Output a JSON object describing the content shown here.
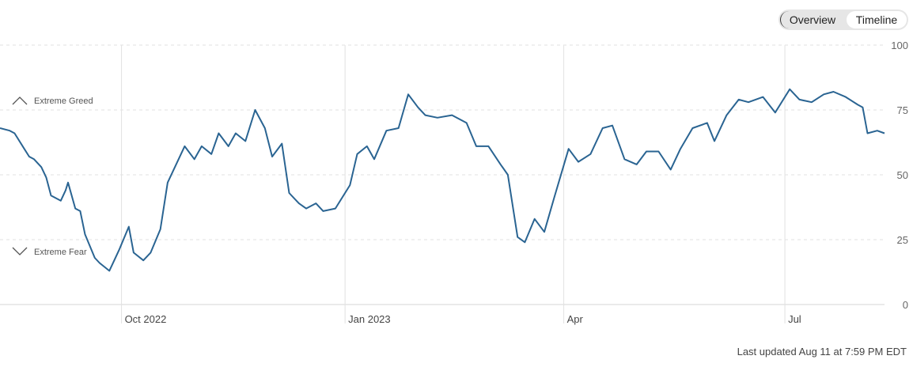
{
  "toggle": {
    "overview_label": "Overview",
    "timeline_label": "Timeline"
  },
  "zones": {
    "greed_label": "Extreme Greed",
    "fear_label": "Extreme Fear"
  },
  "footer": {
    "last_updated": "Last updated Aug 11 at 7:59 PM EDT"
  },
  "colors": {
    "line": "#2a6492",
    "grid": "#e2e2e2",
    "text": "#444444"
  },
  "chart_data": {
    "type": "line",
    "ylim": [
      0,
      100
    ],
    "yticks": [
      0,
      25,
      50,
      75,
      100
    ],
    "xlim": [
      "2022-08-12",
      "2023-08-11"
    ],
    "xticks": [
      {
        "date": "2022-10-01",
        "label": "Oct 2022"
      },
      {
        "date": "2023-01-01",
        "label": "Jan 2023"
      },
      {
        "date": "2023-04-01",
        "label": "Apr"
      },
      {
        "date": "2023-07-01",
        "label": "Jul"
      }
    ],
    "grid": true,
    "series": [
      {
        "x": [
          "2022-08-12",
          "2022-08-16",
          "2022-08-18",
          "2022-08-22",
          "2022-08-24",
          "2022-08-26",
          "2022-08-29",
          "2022-08-31",
          "2022-09-02",
          "2022-09-06",
          "2022-09-08",
          "2022-09-09",
          "2022-09-12",
          "2022-09-14",
          "2022-09-16",
          "2022-09-20",
          "2022-09-22",
          "2022-09-26",
          "2022-09-28",
          "2022-09-30",
          "2022-10-04",
          "2022-10-06",
          "2022-10-10",
          "2022-10-13",
          "2022-10-17",
          "2022-10-20",
          "2022-10-24",
          "2022-10-27",
          "2022-10-31",
          "2022-11-03",
          "2022-11-07",
          "2022-11-10",
          "2022-11-14",
          "2022-11-17",
          "2022-11-21",
          "2022-11-25",
          "2022-11-29",
          "2022-12-02",
          "2022-12-06",
          "2022-12-09",
          "2022-12-13",
          "2022-12-16",
          "2022-12-20",
          "2022-12-23",
          "2022-12-28",
          "2023-01-03",
          "2023-01-06",
          "2023-01-10",
          "2023-01-13",
          "2023-01-18",
          "2023-01-23",
          "2023-01-27",
          "2023-01-31",
          "2023-02-03",
          "2023-02-08",
          "2023-02-14",
          "2023-02-20",
          "2023-02-24",
          "2023-03-01",
          "2023-03-06",
          "2023-03-09",
          "2023-03-13",
          "2023-03-16",
          "2023-03-20",
          "2023-03-24",
          "2023-03-28",
          "2023-04-03",
          "2023-04-07",
          "2023-04-12",
          "2023-04-17",
          "2023-04-21",
          "2023-04-26",
          "2023-05-01",
          "2023-05-05",
          "2023-05-10",
          "2023-05-15",
          "2023-05-19",
          "2023-05-24",
          "2023-05-30",
          "2023-06-02",
          "2023-06-07",
          "2023-06-12",
          "2023-06-16",
          "2023-06-22",
          "2023-06-27",
          "2023-07-03",
          "2023-07-07",
          "2023-07-12",
          "2023-07-17",
          "2023-07-21",
          "2023-07-26",
          "2023-07-31",
          "2023-08-02",
          "2023-08-04",
          "2023-08-08",
          "2023-08-11"
        ],
        "values": [
          68,
          67,
          66,
          60,
          57,
          56,
          53,
          49,
          42,
          40,
          44,
          47,
          37,
          36,
          27,
          18,
          16,
          13,
          17,
          21,
          30,
          20,
          17,
          20,
          29,
          47,
          55,
          61,
          56,
          61,
          58,
          66,
          61,
          66,
          63,
          75,
          68,
          57,
          62,
          43,
          39,
          37,
          39,
          36,
          37,
          46,
          58,
          61,
          56,
          67,
          68,
          81,
          76,
          73,
          72,
          73,
          70,
          61,
          61,
          54,
          50,
          26,
          24,
          33,
          28,
          41,
          60,
          55,
          58,
          68,
          69,
          56,
          54,
          59,
          59,
          52,
          60,
          68,
          70,
          63,
          73,
          79,
          78,
          80,
          74,
          83,
          79,
          78,
          81,
          82,
          80,
          77,
          76,
          66,
          67,
          66
        ]
      }
    ]
  }
}
